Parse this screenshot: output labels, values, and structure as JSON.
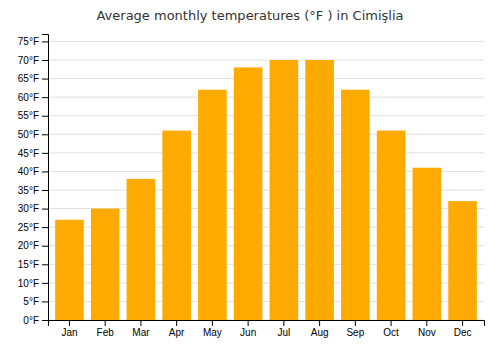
{
  "chart_data": {
    "type": "bar",
    "title": "Average monthly temperatures (°F ) in Cimişlia",
    "categories": [
      "Jan",
      "Feb",
      "Mar",
      "Apr",
      "May",
      "Jun",
      "Jul",
      "Aug",
      "Sep",
      "Oct",
      "Nov",
      "Dec"
    ],
    "values": [
      27,
      30,
      38,
      51,
      62,
      68,
      70,
      70,
      62,
      51,
      41,
      32
    ],
    "color": "#FFAA00",
    "ylim": [
      0,
      77
    ],
    "yticks": [
      {
        "value": 0,
        "label": "0°F"
      },
      {
        "value": 5,
        "label": "5°F"
      },
      {
        "value": 10,
        "label": "10°F"
      },
      {
        "value": 15,
        "label": "15°F"
      },
      {
        "value": 20,
        "label": "20°F"
      },
      {
        "value": 25,
        "label": "25°F"
      },
      {
        "value": 30,
        "label": "30°F"
      },
      {
        "value": 35,
        "label": "35°F"
      },
      {
        "value": 40,
        "label": "40°F"
      },
      {
        "value": 45,
        "label": "45°F"
      },
      {
        "value": 50,
        "label": "50°F"
      },
      {
        "value": 55,
        "label": "55°F"
      },
      {
        "value": 60,
        "label": "60°F"
      },
      {
        "value": 65,
        "label": "65°F"
      },
      {
        "value": 70,
        "label": "70°F"
      },
      {
        "value": 75,
        "label": "75°F"
      }
    ],
    "grid": true
  }
}
